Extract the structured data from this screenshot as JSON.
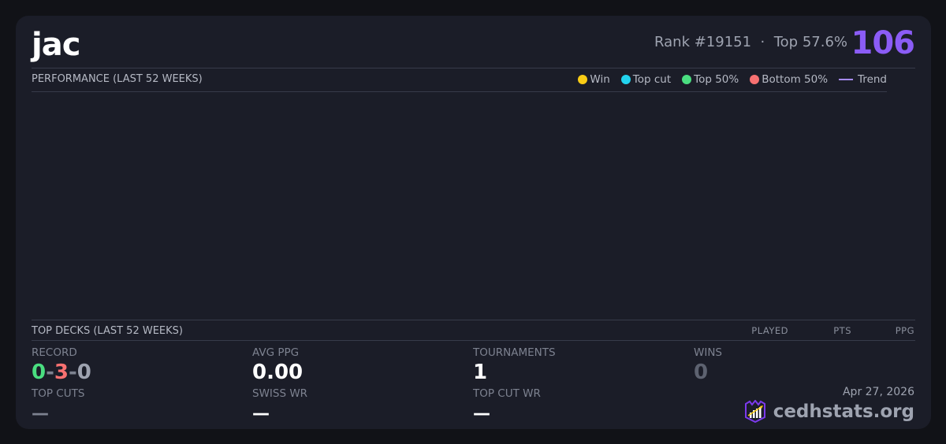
{
  "player": {
    "name": "jac",
    "rank": "Rank #19151",
    "separator": "·",
    "top_percent": "Top 57.6%",
    "score": "106"
  },
  "performance": {
    "title": "PERFORMANCE (LAST 52 WEEKS)",
    "legend": [
      {
        "label": "Win",
        "color": "#facc15"
      },
      {
        "label": "Top cut",
        "color": "#22d3ee"
      },
      {
        "label": "Top 50%",
        "color": "#4ade80"
      },
      {
        "label": "Bottom 50%",
        "color": "#f87171"
      }
    ],
    "trend_label": "Trend",
    "trend_color": "#a78bfa"
  },
  "top_decks": {
    "title": "TOP DECKS (LAST 52 WEEKS)",
    "columns": [
      "PLAYED",
      "PTS",
      "PPG"
    ]
  },
  "stats": {
    "record_label": "RECORD",
    "record_wins": "0",
    "record_losses": "3",
    "record_draws": "0",
    "record_sep": "-",
    "avg_ppg_label": "AVG PPG",
    "avg_ppg": "0.00",
    "tournaments_label": "TOURNAMENTS",
    "tournaments": "1",
    "wins_label": "WINS",
    "wins": "0",
    "top_cuts_label": "TOP CUTS",
    "top_cuts": "—",
    "swiss_wr_label": "SWISS WR",
    "swiss_wr": "—",
    "top_cut_wr_label": "TOP CUT WR",
    "top_cut_wr": "—"
  },
  "footer": {
    "date": "Apr 27, 2026",
    "brand": "cedhstats.org"
  }
}
